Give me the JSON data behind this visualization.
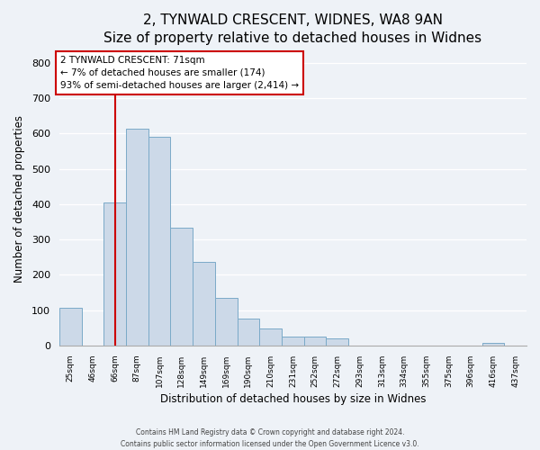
{
  "title": "2, TYNWALD CRESCENT, WIDNES, WA8 9AN",
  "subtitle": "Size of property relative to detached houses in Widnes",
  "xlabel": "Distribution of detached houses by size in Widnes",
  "ylabel": "Number of detached properties",
  "bar_labels": [
    "25sqm",
    "46sqm",
    "66sqm",
    "87sqm",
    "107sqm",
    "128sqm",
    "149sqm",
    "169sqm",
    "190sqm",
    "210sqm",
    "231sqm",
    "252sqm",
    "272sqm",
    "293sqm",
    "313sqm",
    "334sqm",
    "355sqm",
    "375sqm",
    "396sqm",
    "416sqm",
    "437sqm"
  ],
  "bar_values": [
    106,
    0,
    405,
    614,
    590,
    333,
    236,
    136,
    76,
    49,
    25,
    25,
    20,
    0,
    0,
    0,
    0,
    0,
    0,
    8,
    0
  ],
  "bar_color": "#ccd9e8",
  "bar_edge_color": "#7aaac8",
  "vline_x_index": 2,
  "vline_color": "#cc0000",
  "annotation_text": "2 TYNWALD CRESCENT: 71sqm\n← 7% of detached houses are smaller (174)\n93% of semi-detached houses are larger (2,414) →",
  "annotation_box_color": "#ffffff",
  "annotation_box_edge": "#cc0000",
  "ylim": [
    0,
    830
  ],
  "yticks": [
    0,
    100,
    200,
    300,
    400,
    500,
    600,
    700,
    800
  ],
  "footer1": "Contains HM Land Registry data © Crown copyright and database right 2024.",
  "footer2": "Contains public sector information licensed under the Open Government Licence v3.0.",
  "bg_color": "#eef2f7",
  "plot_bg_color": "#eef2f7",
  "grid_color": "#ffffff",
  "title_fontsize": 11,
  "subtitle_fontsize": 9.5
}
